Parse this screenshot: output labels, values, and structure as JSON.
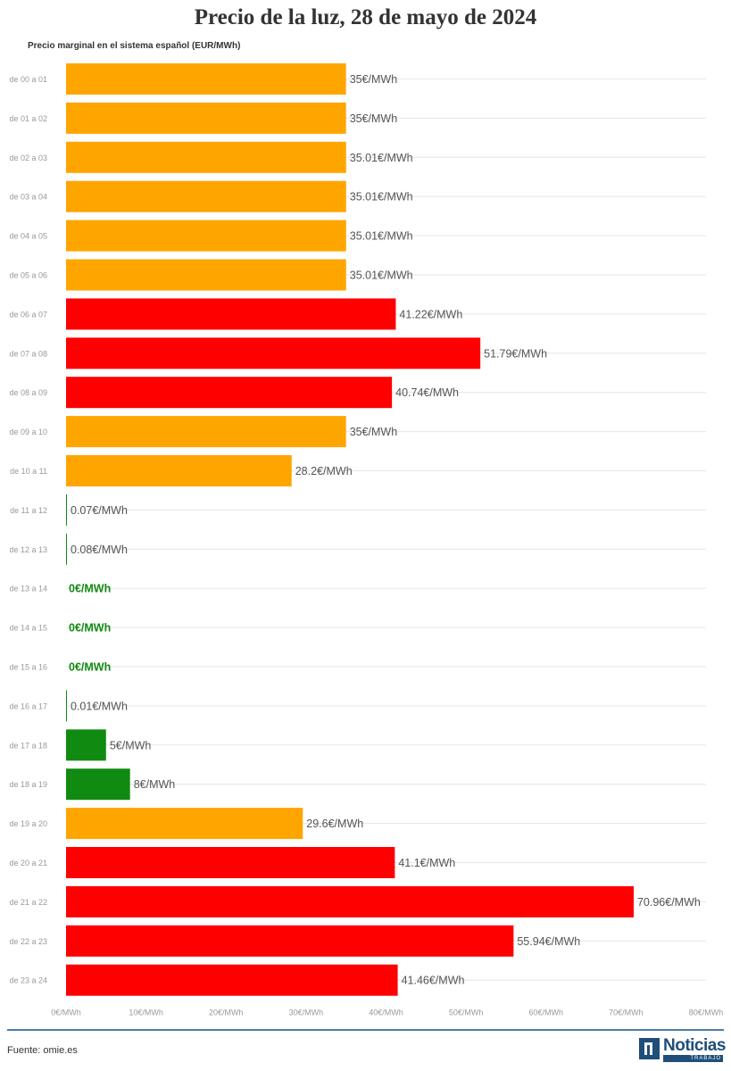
{
  "header": {
    "title": "Precio de la luz, 28 de mayo de 2024",
    "subtitle": "Precio marginal en el sistema español (EUR/MWh)"
  },
  "footer": {
    "source": "Fuente: omie.es",
    "logo_word": "Noticias",
    "logo_sub": "TRABAJO"
  },
  "colors": {
    "green": "#118a11",
    "orange": "#ffa500",
    "red": "#ff0000",
    "grid": "#e6e6e6",
    "tick": "#999999",
    "label": "#555555"
  },
  "chart_data": {
    "type": "bar",
    "orientation": "horizontal",
    "title": "Precio de la luz, 28 de mayo de 2024",
    "subtitle": "Precio marginal en el sistema español (EUR/MWh)",
    "xlim": [
      0,
      80
    ],
    "x_ticks": [
      "0€/MWh",
      "10€/MWh",
      "20€/MWh",
      "30€/MWh",
      "40€/MWh",
      "50€/MWh",
      "60€/MWh",
      "70€/MWh",
      "80€/MWh"
    ],
    "x_tick_values": [
      0,
      10,
      20,
      30,
      40,
      50,
      60,
      70,
      80
    ],
    "grid": true,
    "categories": [
      "de 00 a 01",
      "de 01 a 02",
      "de 02 a 03",
      "de 03 a 04",
      "de 04 a 05",
      "de 05 a 06",
      "de 06 a 07",
      "de 07 a 08",
      "de 08 a 09",
      "de 09 a 10",
      "de 10 a 11",
      "de 11 a 12",
      "de 12 a 13",
      "de 13 a 14",
      "de 14 a 15",
      "de 15 a 16",
      "de 16 a 17",
      "de 17 a 18",
      "de 18 a 19",
      "de 19 a 20",
      "de 20 a 21",
      "de 21 a 22",
      "de 22 a 23",
      "de 23 a 24"
    ],
    "values": [
      35,
      35,
      35.01,
      35.01,
      35.01,
      35.01,
      41.22,
      51.79,
      40.74,
      35,
      28.2,
      0.07,
      0.08,
      0,
      0,
      0,
      0.01,
      5,
      8,
      29.6,
      41.1,
      70.96,
      55.94,
      41.46
    ],
    "labels": [
      "35€/MWh",
      "35€/MWh",
      "35.01€/MWh",
      "35.01€/MWh",
      "35.01€/MWh",
      "35.01€/MWh",
      "41.22€/MWh",
      "51.79€/MWh",
      "40.74€/MWh",
      "35€/MWh",
      "28.2€/MWh",
      "0.07€/MWh",
      "0.08€/MWh",
      "0€/MWh",
      "0€/MWh",
      "0€/MWh",
      "0.01€/MWh",
      "5€/MWh",
      "8€/MWh",
      "29.6€/MWh",
      "41.1€/MWh",
      "70.96€/MWh",
      "55.94€/MWh",
      "41.46€/MWh"
    ],
    "bar_colors": [
      "orange",
      "orange",
      "orange",
      "orange",
      "orange",
      "orange",
      "red",
      "red",
      "red",
      "orange",
      "orange",
      "green",
      "green",
      "green",
      "green",
      "green",
      "green",
      "green",
      "green",
      "orange",
      "red",
      "red",
      "red",
      "red"
    ],
    "highlighted_zero_labels": [
      13,
      14,
      15
    ]
  }
}
